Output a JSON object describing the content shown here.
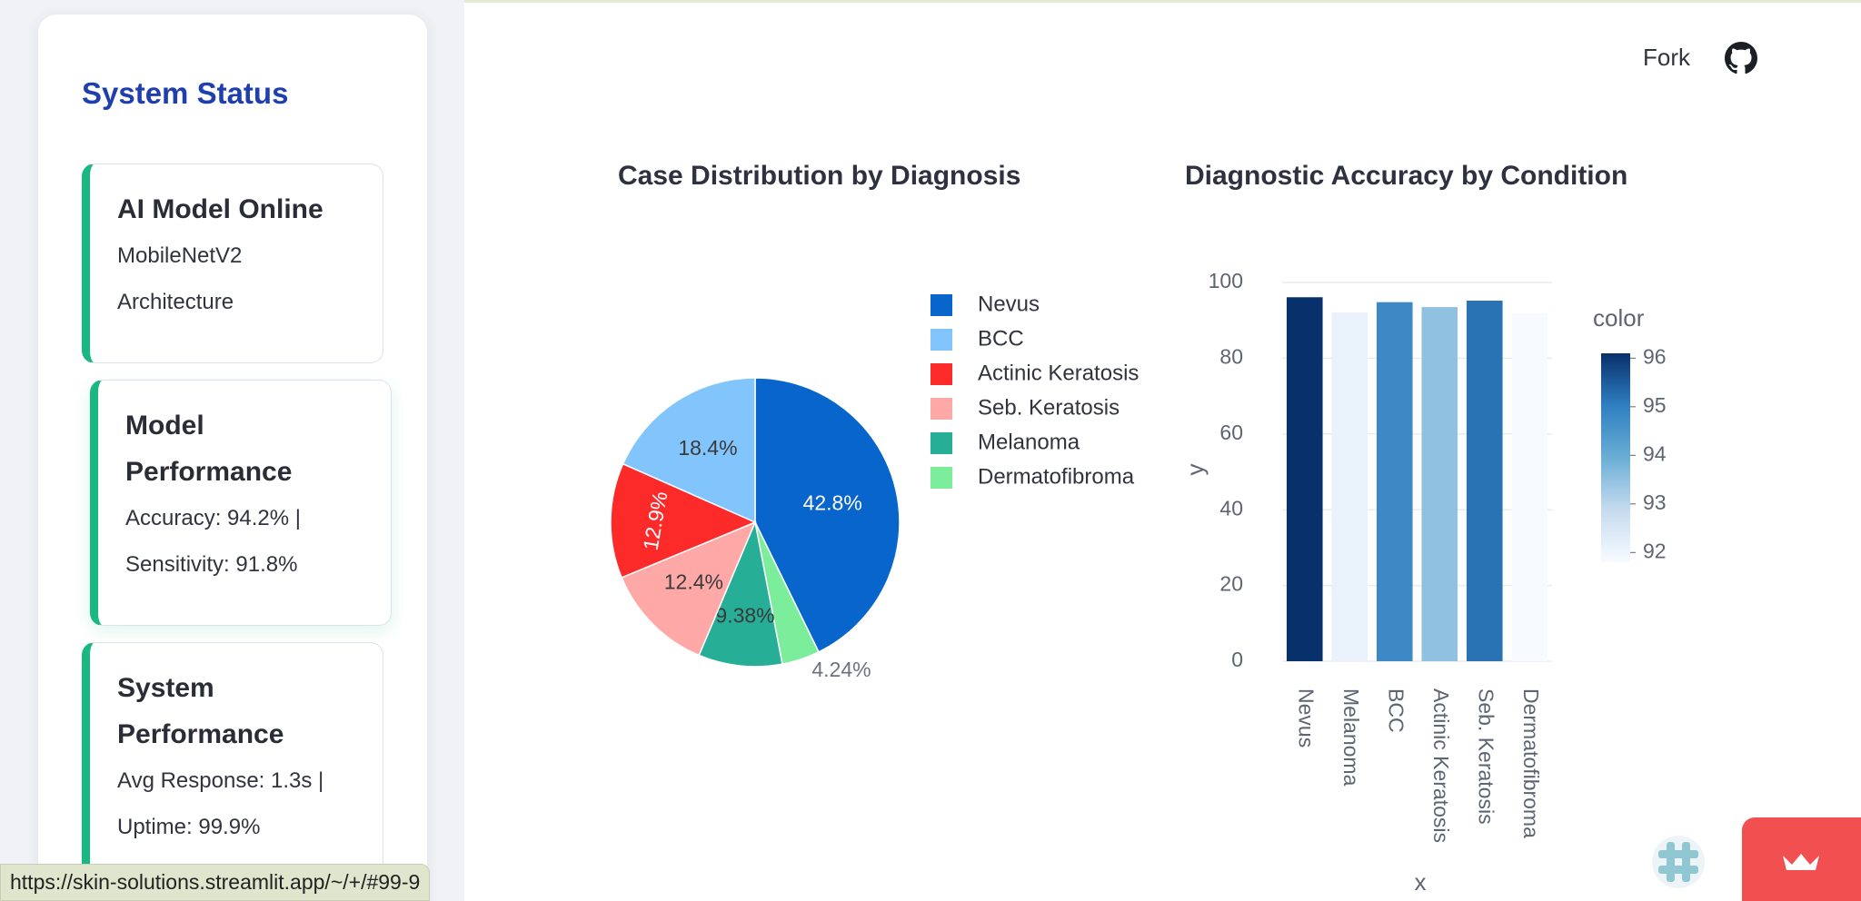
{
  "sidebar": {
    "title": "System Status",
    "cards": [
      {
        "title_lines": [
          "AI Model Online"
        ],
        "lines": [
          "MobileNetV2",
          "Architecture"
        ]
      },
      {
        "title_lines": [
          "Model",
          "Performance"
        ],
        "lines": [
          "Accuracy: 94.2% |",
          "Sensitivity: 91.8%"
        ]
      },
      {
        "title_lines": [
          "System",
          "Performance"
        ],
        "lines": [
          "Avg Response: 1.3s |",
          "Uptime: 99.9%"
        ]
      }
    ]
  },
  "header": {
    "fork_label": "Fork",
    "github_icon": "github-icon"
  },
  "status_bar": {
    "url": "https://skin-solutions.streamlit.app/~/+/#99-9"
  },
  "chart_data": [
    {
      "type": "pie",
      "title": "Case Distribution by Diagnosis",
      "labels": [
        "Nevus",
        "BCC",
        "Actinic Keratosis",
        "Seb. Keratosis",
        "Melanoma",
        "Dermatofibroma"
      ],
      "slices": [
        {
          "label": "Nevus",
          "percent": 42.8,
          "text": "42.8%",
          "color": "#0865cc"
        },
        {
          "label": "Dermatofibroma",
          "percent": 4.24,
          "text": "4.24%",
          "color": "#7ced9a"
        },
        {
          "label": "Melanoma",
          "percent": 9.38,
          "text": "9.38%",
          "color": "#27ae97"
        },
        {
          "label": "Seb. Keratosis",
          "percent": 12.4,
          "text": "12.4%",
          "color": "#ffa8a8"
        },
        {
          "label": "Actinic Keratosis",
          "percent": 12.9,
          "text": "12.9%",
          "color": "#fd2a2a"
        },
        {
          "label": "BCC",
          "percent": 18.4,
          "text": "18.4%",
          "color": "#82c5fd"
        }
      ],
      "legend_placement": "right",
      "legend": [
        {
          "label": "Nevus",
          "color": "#0865cc"
        },
        {
          "label": "BCC",
          "color": "#82c5fd"
        },
        {
          "label": "Actinic Keratosis",
          "color": "#fd2a2a"
        },
        {
          "label": "Seb. Keratosis",
          "color": "#ffa8a8"
        },
        {
          "label": "Melanoma",
          "color": "#27ae97"
        },
        {
          "label": "Dermatofibroma",
          "color": "#7ced9a"
        }
      ]
    },
    {
      "type": "bar",
      "title": "Diagnostic Accuracy by Condition",
      "categories": [
        "Nevus",
        "Melanoma",
        "BCC",
        "Actinic Keratosis",
        "Seb. Keratosis",
        "Dermatofibroma"
      ],
      "values": [
        96.1,
        92.1,
        94.8,
        93.5,
        95.2,
        91.8
      ],
      "xlabel": "x",
      "ylabel": "y",
      "ylim": [
        0,
        100
      ],
      "yticks": [
        "0",
        "20",
        "40",
        "60",
        "80",
        "100"
      ],
      "grid": true,
      "colorbar": {
        "title": "color",
        "ticks": [
          "96",
          "95",
          "94",
          "93",
          "92"
        ],
        "range": [
          91.8,
          96.1
        ],
        "colorscale": "Blues",
        "placement": "right"
      }
    }
  ]
}
